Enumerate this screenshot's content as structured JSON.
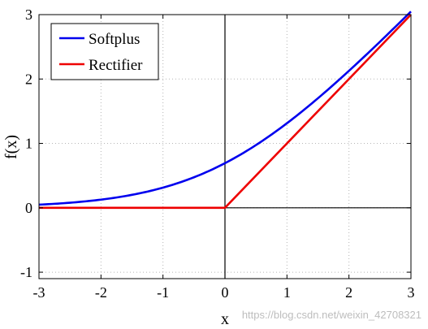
{
  "chart_data": {
    "type": "line",
    "title": "",
    "xlabel": "x",
    "ylabel": "f(x)",
    "xlim": [
      -3,
      3
    ],
    "ylim": [
      -1.1,
      3
    ],
    "xticks": [
      -3,
      -2,
      -1,
      0,
      1,
      2,
      3
    ],
    "yticks": [
      -1,
      0,
      1,
      2,
      3
    ],
    "xtick_labels": [
      "-3",
      "-2",
      "-1",
      "0",
      "1",
      "2",
      "3"
    ],
    "ytick_labels": [
      "-1",
      "0",
      "1",
      "2",
      "3"
    ],
    "grid": true,
    "legend_position": "top-left",
    "reference_lines": {
      "x": 0,
      "y": 0
    },
    "series": [
      {
        "name": "Softplus",
        "color": "#0000ee",
        "x": [
          -3,
          -2.5,
          -2,
          -1.5,
          -1,
          -0.5,
          0,
          0.5,
          1,
          1.5,
          2,
          2.5,
          3
        ],
        "y": [
          0.049,
          0.079,
          0.127,
          0.201,
          0.313,
          0.474,
          0.693,
          0.974,
          1.313,
          1.701,
          2.127,
          2.579,
          3.049
        ]
      },
      {
        "name": "Rectifier",
        "color": "#ee0000",
        "x": [
          -3,
          0,
          3
        ],
        "y": [
          0,
          0,
          3
        ]
      }
    ]
  },
  "watermark": "https://blog.csdn.net/weixin_42708321"
}
